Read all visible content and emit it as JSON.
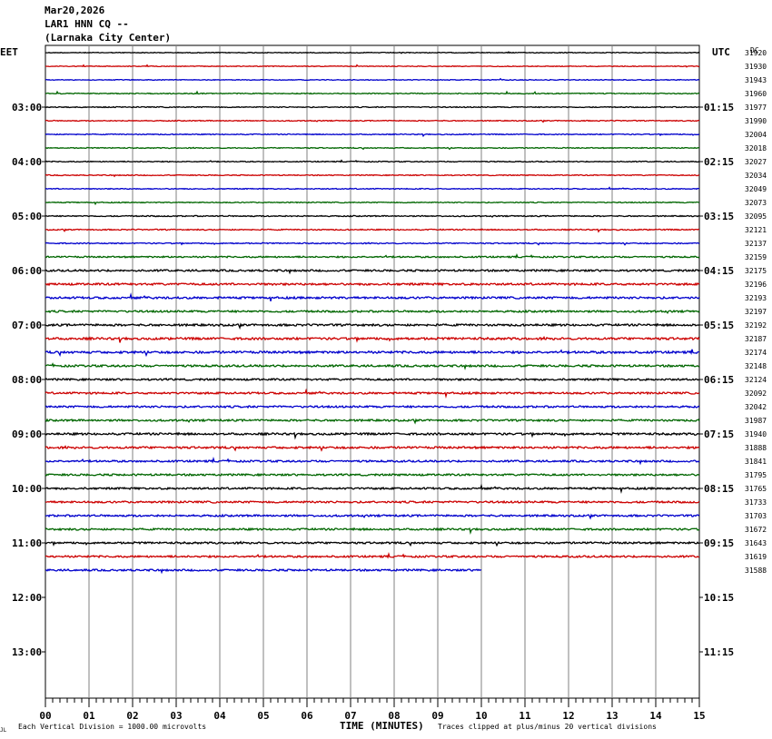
{
  "header": {
    "date": "Mar20,2026",
    "station": "LAR1 HNN CQ --",
    "location": "(Larnaka City Center)"
  },
  "labels": {
    "left_tz": "EET",
    "right_tz": "UTC",
    "dc": "DC",
    "xlabel": "TIME (MINUTES)",
    "scale_note": "Each Vertical Division = 1000.00 microvolts",
    "clip_note": "Traces clipped at plus/minus 20 vertical divisions",
    "corner_mark": "JL"
  },
  "colors": [
    "#000000",
    "#cc0000",
    "#0000cc",
    "#006600"
  ],
  "chart_data": {
    "type": "line",
    "title": "LAR1 HNN CQ --",
    "xlabel": "TIME (MINUTES)",
    "xlim": [
      0,
      15
    ],
    "x_ticks": [
      "00",
      "01",
      "02",
      "03",
      "04",
      "05",
      "06",
      "07",
      "08",
      "09",
      "10",
      "11",
      "12",
      "13",
      "14",
      "15"
    ],
    "left_time_labels": [
      "03:00",
      "04:00",
      "05:00",
      "06:00",
      "07:00",
      "08:00",
      "09:00",
      "10:00",
      "11:00",
      "12:00",
      "13:00"
    ],
    "right_time_labels": [
      "01:15",
      "02:15",
      "03:15",
      "04:15",
      "05:15",
      "06:15",
      "07:15",
      "08:15",
      "09:15",
      "10:15",
      "11:15"
    ],
    "trace_count_full": 38,
    "last_trace_end_minute": 10.0,
    "dc_offsets": [
      31920,
      31930,
      31943,
      31960,
      31977,
      31990,
      32004,
      32018,
      32027,
      32034,
      32049,
      32073,
      32095,
      32121,
      32137,
      32159,
      32175,
      32196,
      32193,
      32197,
      32192,
      32187,
      32174,
      32148,
      32124,
      32092,
      32042,
      31987,
      31940,
      31888,
      31841,
      31795,
      31765,
      31733,
      31703,
      31672,
      31643,
      31619,
      31588
    ],
    "noise_levels": [
      0.4,
      0.4,
      0.4,
      0.5,
      0.5,
      0.5,
      0.5,
      0.5,
      0.5,
      0.5,
      0.5,
      0.5,
      0.6,
      0.6,
      0.6,
      0.8,
      1.0,
      1.1,
      1.1,
      1.0,
      1.1,
      1.2,
      1.2,
      1.1,
      1.0,
      1.0,
      1.0,
      1.0,
      1.1,
      1.1,
      1.0,
      1.0,
      1.0,
      1.0,
      1.0,
      1.0,
      1.0,
      1.0,
      1.0
    ],
    "grid": true
  }
}
